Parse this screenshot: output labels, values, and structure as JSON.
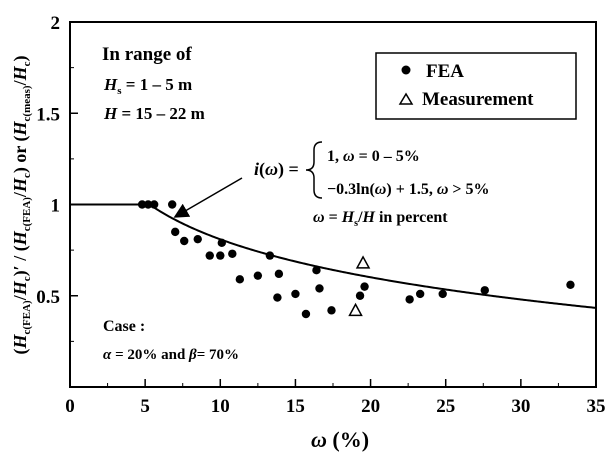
{
  "chart_data": {
    "type": "scatter",
    "xlabel": "ω (%)",
    "ylabel": "(H c(FEA)/Hc)′ / (Hc(FEA)/Hc) or (Hc(meas)/Hc)",
    "xlim": [
      0,
      35
    ],
    "ylim": [
      0,
      2
    ],
    "x_ticks": [
      "0",
      "5",
      "10",
      "15",
      "20",
      "25",
      "30",
      "35"
    ],
    "y_ticks": [
      "0.5",
      "1",
      "1.5",
      "2"
    ],
    "grid": false,
    "legend_position": "top-right",
    "series": [
      {
        "name": "FEA",
        "marker": "filled-circle",
        "points": [
          [
            4.8,
            1.0
          ],
          [
            5.2,
            1.0
          ],
          [
            5.6,
            1.0
          ],
          [
            6.8,
            1.0
          ],
          [
            7.0,
            0.85
          ],
          [
            7.6,
            0.8
          ],
          [
            8.5,
            0.81
          ],
          [
            9.3,
            0.72
          ],
          [
            10.0,
            0.72
          ],
          [
            10.1,
            0.79
          ],
          [
            10.8,
            0.73
          ],
          [
            11.3,
            0.59
          ],
          [
            12.5,
            0.61
          ],
          [
            13.3,
            0.72
          ],
          [
            13.8,
            0.49
          ],
          [
            13.9,
            0.62
          ],
          [
            15.0,
            0.51
          ],
          [
            15.7,
            0.4
          ],
          [
            16.4,
            0.64
          ],
          [
            16.6,
            0.54
          ],
          [
            17.4,
            0.42
          ],
          [
            19.3,
            0.5
          ],
          [
            19.6,
            0.55
          ],
          [
            22.6,
            0.48
          ],
          [
            23.3,
            0.51
          ],
          [
            24.8,
            0.51
          ],
          [
            27.6,
            0.53
          ],
          [
            33.3,
            0.56
          ]
        ]
      },
      {
        "name": "Measurement",
        "marker": "open-triangle",
        "points": [
          [
            19.0,
            0.42
          ],
          [
            19.5,
            0.68
          ]
        ]
      }
    ],
    "curve": {
      "description": "i(ω) = 1 for ω ≤ 5; -0.3 ln(ω) + 1.5 for ω > 5",
      "x_start": 0,
      "x_end": 35
    }
  },
  "annotations": {
    "range_title": "In range of",
    "hs_range": "Hs = 1 – 5 m",
    "h_range": "H = 15 – 22 m",
    "formula_lhs": "i(ω) =",
    "formula_case1": "1, ω = 0 – 5%",
    "formula_case2": "−0.3ln(ω) + 1.5, ω > 5%",
    "omega_def": "ω = Hs/H in percent",
    "case_title": "Case :",
    "case_params": "α = 20% and β= 70%"
  },
  "legend": {
    "fea_label": "FEA",
    "meas_label": "Measurement"
  },
  "colors": {
    "ink": "#000000",
    "background": "#ffffff"
  }
}
